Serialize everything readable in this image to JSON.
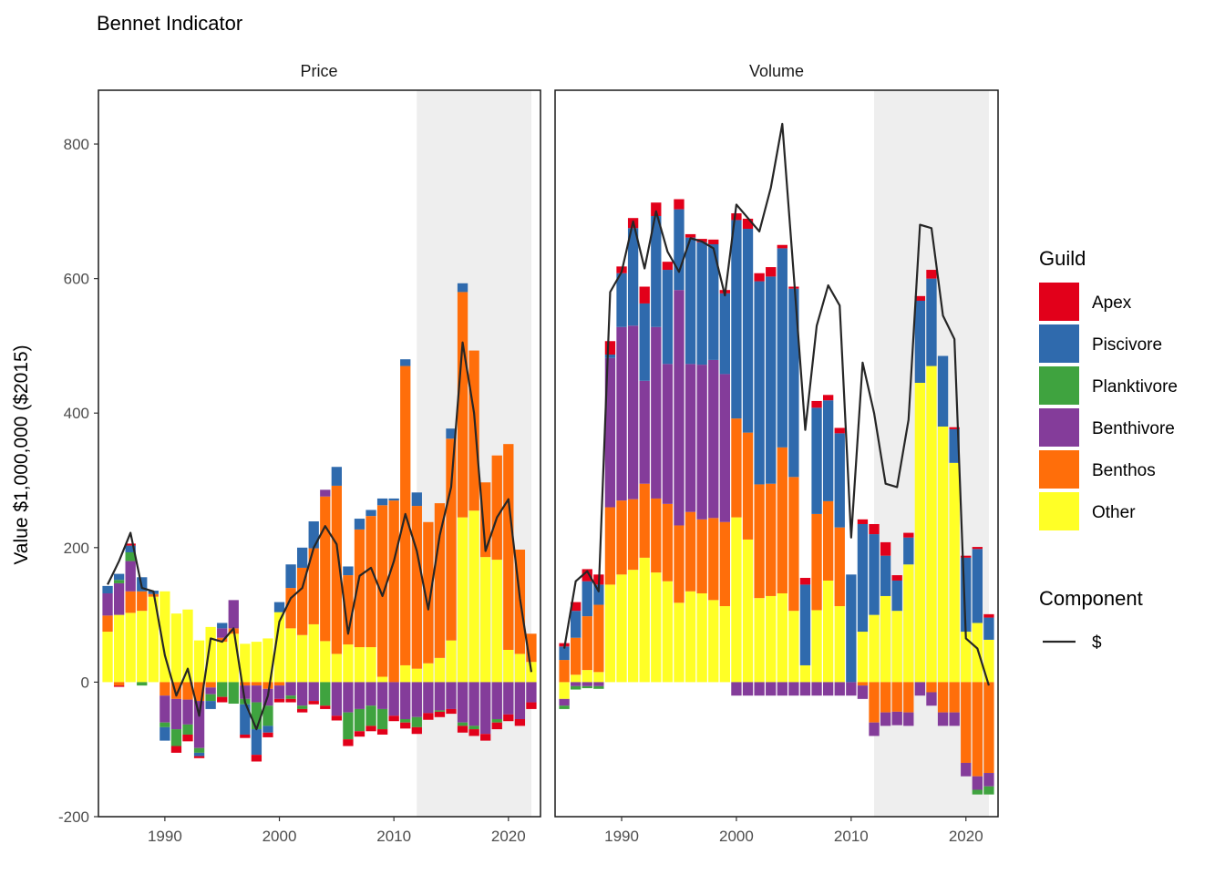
{
  "chart_data": {
    "type": "bar",
    "title": "Bennet Indicator",
    "xlabel": "",
    "ylabel": "Value $1,000,000 ($2015)",
    "ylim": [
      -200,
      880
    ],
    "yticks": [
      -200,
      0,
      200,
      400,
      600,
      800
    ],
    "xlim": [
      1984.2,
      2022.8
    ],
    "xticks": [
      1990,
      2000,
      2010,
      2020
    ],
    "stacking": "positive and negative components stacked separately; guild order bottom-to-top: Other, Benthos, Benthivore, Planktivore, Piscivore, Apex",
    "shaded_region": [
      2012,
      2022
    ],
    "legend": {
      "guild_title": "Guild",
      "guilds": [
        {
          "name": "Apex",
          "color": "#E2001A"
        },
        {
          "name": "Piscivore",
          "color": "#2F6AAD"
        },
        {
          "name": "Planktivore",
          "color": "#3FA33F"
        },
        {
          "name": "Benthivore",
          "color": "#843C9A"
        },
        {
          "name": "Benthos",
          "color": "#FF6E0A"
        },
        {
          "name": "Other",
          "color": "#FFFF26"
        }
      ],
      "component_title": "Component",
      "component_label": "$",
      "line_color": "#262626"
    },
    "guild_order": [
      "Other",
      "Benthos",
      "Benthivore",
      "Planktivore",
      "Piscivore",
      "Apex"
    ],
    "panels": [
      {
        "name": "Price",
        "years": [
          1985,
          1986,
          1987,
          1988,
          1989,
          1990,
          1991,
          1992,
          1993,
          1994,
          1995,
          1996,
          1997,
          1998,
          1999,
          2000,
          2001,
          2002,
          2003,
          2004,
          2005,
          2006,
          2007,
          2008,
          2009,
          2010,
          2011,
          2012,
          2013,
          2014,
          2015,
          2016,
          2017,
          2018,
          2019,
          2020,
          2021,
          2022
        ],
        "series": [
          {
            "name": "Other",
            "values": [
              75,
              100,
              103,
              106,
              127,
              135,
              102,
              108,
              62,
              82,
              60,
              72,
              57,
              60,
              65,
              104,
              80,
              70,
              86,
              61,
              42,
              56,
              52,
              52,
              8,
              0,
              25,
              20,
              28,
              36,
              62,
              245,
              255,
              186,
              182,
              48,
              42,
              30
            ]
          },
          {
            "name": "Benthos",
            "values": [
              24,
              -5,
              32,
              29,
              4,
              -20,
              -25,
              -26,
              -28,
              -8,
              6,
              8,
              -5,
              -5,
              -10,
              -5,
              60,
              100,
              113,
              215,
              250,
              103,
              175,
              195,
              255,
              270,
              445,
              242,
              210,
              230,
              300,
              335,
              238,
              111,
              155,
              306,
              155,
              42
            ]
          },
          {
            "name": "Benthivore",
            "values": [
              33,
              47,
              45,
              0,
              0,
              -40,
              -45,
              -37,
              -70,
              -10,
              14,
              42,
              -20,
              -25,
              -25,
              -20,
              -20,
              -35,
              -28,
              10,
              -50,
              -45,
              -40,
              -35,
              -40,
              -50,
              -55,
              -52,
              -46,
              -42,
              -40,
              -60,
              -65,
              -77,
              -55,
              -48,
              -55,
              -30
            ]
          },
          {
            "name": "Planktivore",
            "values": [
              0,
              5,
              13,
              -5,
              0,
              -7,
              -25,
              -15,
              -7,
              -10,
              -22,
              -32,
              -8,
              -40,
              -30,
              0,
              -5,
              -5,
              0,
              -35,
              0,
              -40,
              -33,
              -30,
              -30,
              0,
              -5,
              -15,
              0,
              -2,
              0,
              -5,
              -5,
              0,
              -5,
              0,
              0,
              0
            ]
          },
          {
            "name": "Piscivore",
            "values": [
              11,
              9,
              10,
              21,
              5,
              -20,
              0,
              0,
              -5,
              -12,
              8,
              0,
              -45,
              -38,
              -10,
              15,
              35,
              30,
              40,
              0,
              28,
              13,
              16,
              9,
              10,
              3,
              10,
              20,
              0,
              0,
              15,
              13,
              0,
              0,
              0,
              0,
              0,
              0
            ]
          },
          {
            "name": "Apex",
            "values": [
              0,
              -2,
              3,
              0,
              0,
              0,
              -10,
              -10,
              -3,
              0,
              -8,
              0,
              -5,
              -10,
              -7,
              -5,
              -5,
              -5,
              -5,
              -5,
              -7,
              -10,
              -8,
              -8,
              -8,
              -8,
              -9,
              -10,
              -10,
              -8,
              -7,
              -10,
              -10,
              -10,
              -10,
              -10,
              -10,
              -10
            ]
          }
        ],
        "net_line": [
          145,
          180,
          222,
          140,
          135,
          40,
          -20,
          20,
          -50,
          65,
          60,
          80,
          -30,
          -70,
          -20,
          90,
          125,
          140,
          200,
          232,
          205,
          72,
          158,
          170,
          128,
          180,
          250,
          195,
          108,
          218,
          290,
          505,
          400,
          195,
          245,
          272,
          125,
          15
        ]
      },
      {
        "name": "Volume",
        "years": [
          1985,
          1986,
          1987,
          1988,
          1989,
          1990,
          1991,
          1992,
          1993,
          1994,
          1995,
          1996,
          1997,
          1998,
          1999,
          2000,
          2001,
          2002,
          2003,
          2004,
          2005,
          2006,
          2007,
          2008,
          2009,
          2010,
          2011,
          2012,
          2013,
          2014,
          2015,
          2016,
          2017,
          2018,
          2019,
          2020,
          2021,
          2022
        ],
        "series": [
          {
            "name": "Other",
            "values": [
              -25,
              11,
              18,
              15,
              145,
              160,
              167,
              185,
              163,
              150,
              118,
              135,
              132,
              122,
              113,
              245,
              212,
              125,
              128,
              132,
              106,
              25,
              107,
              151,
              113,
              0,
              75,
              100,
              128,
              106,
              175,
              445,
              470,
              380,
              326,
              75,
              88,
              63
            ]
          },
          {
            "name": "Benthos",
            "values": [
              33,
              55,
              80,
              100,
              115,
              110,
              105,
              110,
              110,
              115,
              115,
              118,
              110,
              122,
              125,
              147,
              159,
              169,
              167,
              217,
              199,
              0,
              143,
              118,
              117,
              0,
              -5,
              -60,
              -45,
              -44,
              -45,
              0,
              -15,
              -45,
              -45,
              -120,
              -140,
              -135
            ]
          },
          {
            "name": "Benthivore",
            "values": [
              -10,
              -6,
              -6,
              -6,
              222,
              258,
              258,
              153,
              255,
              208,
              350,
              220,
              230,
              235,
              220,
              -20,
              -20,
              -20,
              -20,
              -20,
              -20,
              -20,
              -20,
              -20,
              -20,
              -20,
              -20,
              -20,
              -20,
              -20,
              -20,
              -20,
              -20,
              -20,
              -20,
              -20,
              -20,
              -20
            ]
          },
          {
            "name": "Planktivore",
            "values": [
              -5,
              -5,
              -3,
              -4,
              0,
              0,
              0,
              0,
              0,
              0,
              0,
              0,
              0,
              0,
              0,
              0,
              0,
              0,
              0,
              0,
              0,
              0,
              0,
              0,
              0,
              0,
              0,
              0,
              0,
              0,
              0,
              0,
              0,
              0,
              0,
              0,
              -7,
              -12
            ]
          },
          {
            "name": "Piscivore",
            "values": [
              20,
              40,
              52,
              30,
              5,
              80,
              145,
              115,
              165,
              140,
              120,
              188,
              182,
              172,
              120,
              295,
              303,
              302,
              308,
              296,
              280,
              120,
              158,
              150,
              140,
              160,
              160,
              120,
              60,
              45,
              40,
              122,
              130,
              105,
              50,
              110,
              110,
              33
            ]
          },
          {
            "name": "Apex",
            "values": [
              5,
              13,
              18,
              15,
              20,
              10,
              15,
              25,
              20,
              12,
              15,
              5,
              5,
              7,
              5,
              10,
              15,
              12,
              14,
              5,
              3,
              10,
              10,
              8,
              8,
              0,
              7,
              15,
              20,
              8,
              7,
              7,
              13,
              0,
              3,
              3,
              3,
              5
            ]
          }
        ],
        "net_line": [
          50,
          150,
          165,
          135,
          580,
          610,
          685,
          615,
          700,
          640,
          610,
          660,
          655,
          645,
          575,
          710,
          690,
          670,
          735,
          830,
          605,
          375,
          530,
          590,
          560,
          215,
          475,
          400,
          295,
          290,
          390,
          680,
          675,
          545,
          510,
          65,
          50,
          -5
        ]
      }
    ]
  }
}
